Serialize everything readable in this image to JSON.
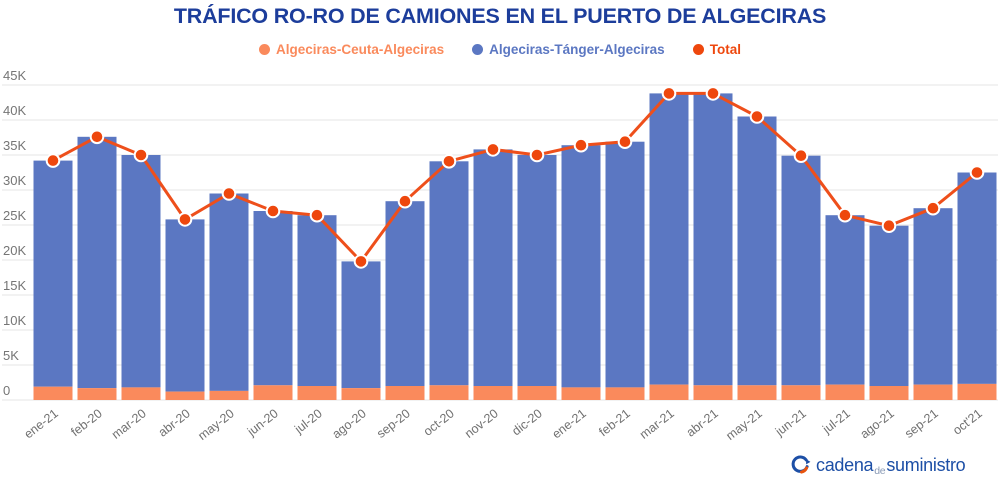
{
  "title": "TRÁFICO RO-RO DE CAMIONES EN EL PUERTO DE ALGECIRAS",
  "legend": [
    {
      "label": "Algeciras-Ceuta-Algeciras",
      "color": "#fa8a5c",
      "text_color": "#fa8a5c",
      "bold": false
    },
    {
      "label": "Algeciras-Tánger-Algeciras",
      "color": "#5b77c2",
      "text_color": "#5b77c2",
      "bold": false
    },
    {
      "label": "Total",
      "color": "#ee470d",
      "text_color": "#ee470d",
      "bold": true
    }
  ],
  "chart_data": {
    "type": "bar",
    "subtype": "stacked-bars-with-total-line",
    "title": "TRÁFICO RO-RO DE CAMIONES EN EL PUERTO DE ALGECIRAS",
    "categories": [
      "ene-21",
      "feb-20",
      "mar-20",
      "abr-20",
      "may-20",
      "jun-20",
      "jul-20",
      "ago-20",
      "sep-20",
      "oct-20",
      "nov-20",
      "dic-20",
      "ene-21",
      "feb-21",
      "mar-21",
      "abr-21",
      "may-21",
      "jun-21",
      "jul-21",
      "ago-21",
      "sep-21",
      "oct'21"
    ],
    "series": [
      {
        "name": "Algeciras-Ceuta-Algeciras",
        "type": "bar",
        "color": "#fa8a5c",
        "values": [
          1900,
          1700,
          1800,
          1200,
          1300,
          2100,
          2000,
          1700,
          2000,
          2100,
          2000,
          2000,
          1800,
          1800,
          2200,
          2100,
          2100,
          2100,
          2200,
          2000,
          2200,
          2300
        ]
      },
      {
        "name": "Algeciras-Tánger-Algeciras",
        "type": "bar",
        "color": "#5b77c2",
        "values": [
          32300,
          35900,
          33200,
          24600,
          28200,
          24900,
          24400,
          18100,
          26400,
          32000,
          33800,
          33000,
          34600,
          35100,
          41600,
          41700,
          38400,
          32800,
          24200,
          22900,
          25200,
          30200
        ]
      },
      {
        "name": "Total",
        "type": "line",
        "color": "#ee4f1b",
        "marker_color": "#ee470d",
        "marker_border": "#ffffff",
        "values": [
          34200,
          37600,
          35000,
          25800,
          29500,
          27000,
          26400,
          19800,
          28400,
          34100,
          35800,
          35000,
          36400,
          36900,
          43800,
          43800,
          40500,
          34900,
          26400,
          24900,
          27400,
          32500
        ]
      }
    ],
    "xlabel": "",
    "ylabel": "",
    "ylim": [
      0,
      45000
    ],
    "ytick_values": [
      0,
      5000,
      10000,
      15000,
      20000,
      25000,
      30000,
      35000,
      40000,
      45000
    ],
    "ytick_labels": [
      "0",
      "5K",
      "10K",
      "15K",
      "20K",
      "25K",
      "30K",
      "35K",
      "40K",
      "45K"
    ],
    "grid": true,
    "gridline_color": "#e4e4e4",
    "tick_text_color": "#757575",
    "legend_position": "top",
    "bar_stack_order": [
      "Algeciras-Ceuta-Algeciras",
      "Algeciras-Tánger-Algeciras"
    ]
  },
  "footer_logo": {
    "part1": "cadena",
    "part2": "de",
    "part3": "suministro",
    "icon": "circular-arrows-icon",
    "blue": "#1d4fa6",
    "orange": "#e8540e"
  }
}
